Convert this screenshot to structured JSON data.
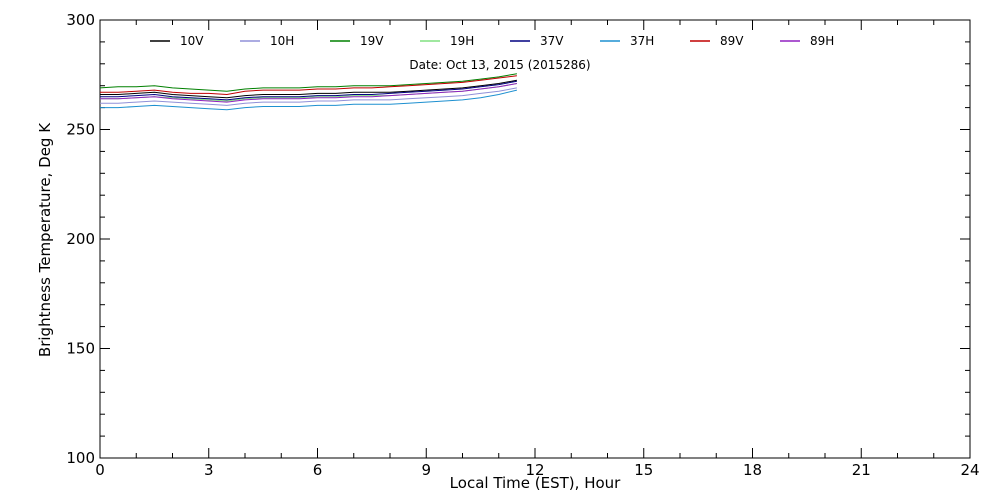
{
  "chart_data": {
    "type": "line",
    "title": "",
    "annotation": "Date: Oct 13, 2015 (2015286)",
    "xlabel": "Local Time (EST), Hour",
    "ylabel": "Brightness Temperature, Deg K",
    "xlim": [
      0,
      24
    ],
    "ylim": [
      100,
      300
    ],
    "xticks": [
      0,
      3,
      6,
      9,
      12,
      15,
      18,
      21,
      24
    ],
    "yticks": [
      100,
      150,
      200,
      250,
      300
    ],
    "grid": false,
    "legend_position": "top",
    "x": [
      0,
      0.5,
      1,
      1.5,
      2,
      2.5,
      3,
      3.5,
      4,
      4.5,
      5,
      5.5,
      6,
      6.5,
      7,
      7.5,
      8,
      8.5,
      9,
      9.5,
      10,
      10.5,
      11,
      11.5
    ],
    "series": [
      {
        "name": "10V",
        "color": "#000000",
        "values": [
          266,
          266,
          266.5,
          267,
          266,
          265.5,
          265,
          264.5,
          265.5,
          266,
          266,
          266,
          266.5,
          266.5,
          267,
          267,
          267,
          267.5,
          268,
          268.5,
          269,
          270,
          271,
          272.5
        ]
      },
      {
        "name": "10H",
        "color": "#9090d8",
        "values": [
          262,
          262,
          262.5,
          263,
          262.5,
          262,
          261.5,
          261,
          262,
          262.5,
          262.5,
          262.5,
          263,
          263,
          263.5,
          263.5,
          263.5,
          264,
          264.5,
          265,
          265.5,
          266.5,
          267.5,
          269
        ]
      },
      {
        "name": "19V",
        "color": "#008000",
        "values": [
          269,
          269.5,
          269.5,
          270,
          269,
          268.5,
          268,
          267.5,
          268.5,
          269,
          269,
          269,
          269.5,
          269.5,
          270,
          270,
          270,
          270.5,
          271,
          271.5,
          272,
          273,
          274,
          275.5
        ]
      },
      {
        "name": "19H",
        "color": "#80e080",
        "values": [
          264,
          264,
          264.5,
          265,
          264.5,
          264,
          263.5,
          263,
          264,
          264.5,
          264.5,
          264.5,
          265,
          265,
          265.5,
          265.5,
          265.5,
          266,
          266.5,
          267,
          267.5,
          268.5,
          269.5,
          271
        ]
      },
      {
        "name": "37V",
        "color": "#000080",
        "values": [
          265,
          265,
          265.5,
          266,
          265,
          264.5,
          264,
          263.5,
          264.5,
          265,
          265,
          265,
          265.5,
          265.5,
          266,
          266,
          266.5,
          267,
          267.5,
          268,
          268.5,
          269.5,
          270.5,
          272
        ]
      },
      {
        "name": "37H",
        "color": "#1e90d0",
        "values": [
          260,
          260,
          260.5,
          261,
          260.5,
          260,
          259.5,
          259,
          260,
          260.5,
          260.5,
          260.5,
          261,
          261,
          261.5,
          261.5,
          261.5,
          262,
          262.5,
          263,
          263.5,
          264.5,
          266,
          268
        ]
      },
      {
        "name": "89V",
        "color": "#c00000",
        "values": [
          267,
          267,
          267.5,
          268,
          267,
          266.5,
          266.5,
          266,
          267.5,
          268,
          268,
          268,
          268.5,
          268.5,
          269,
          269,
          269.5,
          270,
          270.5,
          271,
          271.5,
          272.5,
          273.5,
          274.5
        ]
      },
      {
        "name": "89H",
        "color": "#9020c0",
        "values": [
          264,
          264,
          264.5,
          265,
          264,
          263.5,
          263,
          262.5,
          263.5,
          264,
          264,
          264,
          264.5,
          264.5,
          265,
          265,
          265.5,
          266,
          266.5,
          267,
          267.5,
          268.5,
          269.5,
          271
        ]
      }
    ]
  }
}
